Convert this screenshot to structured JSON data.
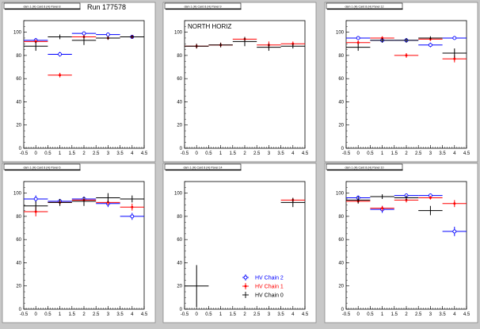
{
  "run_label": "Run 177578",
  "chart_data": [
    {
      "type": "scatter",
      "pad_title": "dam 1 (H) Card 8 (H) Panel 8",
      "annotation": "",
      "xlim": [
        -0.5,
        4.5
      ],
      "ylim": [
        0,
        110
      ],
      "x_ticks": [
        "-0.5",
        "0",
        "0.5",
        "1",
        "1.5",
        "2",
        "2.5",
        "3",
        "3.5",
        "4",
        "4.5"
      ],
      "y_ticks": [
        "0",
        "20",
        "40",
        "60",
        "80",
        "100"
      ],
      "series": [
        {
          "color": "#0000ff",
          "marker": "circle",
          "points": [
            [
              0,
              93,
              2
            ],
            [
              1,
              81,
              2
            ],
            [
              2,
              99,
              1.5
            ],
            [
              3,
              98,
              1.5
            ],
            [
              4,
              96,
              1.5
            ]
          ]
        },
        {
          "color": "#ff0000",
          "marker": "star",
          "points": [
            [
              0,
              92,
              1.5
            ],
            [
              1,
              63,
              2
            ],
            [
              2,
              96,
              1.5
            ],
            [
              3,
              95,
              1.5
            ],
            [
              4,
              96,
              1.5
            ]
          ]
        },
        {
          "color": "#000000",
          "marker": "plus",
          "points": [
            [
              0,
              88,
              4
            ],
            [
              1,
              96,
              2
            ],
            [
              2,
              93,
              4
            ],
            [
              3,
              95,
              1.5
            ],
            [
              4,
              96,
              1.5
            ]
          ]
        }
      ]
    },
    {
      "type": "scatter",
      "pad_title": "dam 1 (H) Card 8 (H) Panel 9",
      "annotation": "NORTH HORIZ",
      "xlim": [
        -0.5,
        4.5
      ],
      "ylim": [
        0,
        110
      ],
      "x_ticks": [
        "-0.5",
        "0",
        "0.5",
        "1",
        "1.5",
        "2",
        "2.5",
        "3",
        "3.5",
        "4",
        "4.5"
      ],
      "y_ticks": [
        "0",
        "20",
        "40",
        "60",
        "80",
        "100"
      ],
      "series": [
        {
          "color": "#ff0000",
          "marker": "star",
          "points": [
            [
              0,
              88,
              2
            ],
            [
              1,
              89,
              2
            ],
            [
              2,
              94,
              2
            ],
            [
              3,
              89,
              3
            ],
            [
              4,
              90,
              2
            ]
          ]
        },
        {
          "color": "#000000",
          "marker": "plus",
          "points": [
            [
              0,
              88,
              2
            ],
            [
              1,
              89,
              2
            ],
            [
              2,
              92,
              4
            ],
            [
              3,
              87,
              3
            ],
            [
              4,
              88,
              2
            ]
          ]
        }
      ]
    },
    {
      "type": "scatter",
      "pad_title": "dam 1 (H) Card 8 (H) Panel 12",
      "annotation": "",
      "xlim": [
        -0.5,
        4.5
      ],
      "ylim": [
        0,
        110
      ],
      "x_ticks": [
        "-0.5",
        "0",
        "0.5",
        "1",
        "1.5",
        "2",
        "2.5",
        "3",
        "3.5",
        "4",
        "4.5"
      ],
      "y_ticks": [
        "0",
        "20",
        "40",
        "60",
        "80",
        "100"
      ],
      "series": [
        {
          "color": "#0000ff",
          "marker": "circle",
          "points": [
            [
              0,
              95,
              1.5
            ],
            [
              1,
              93,
              2
            ],
            [
              2,
              93,
              2
            ],
            [
              3,
              89,
              2
            ],
            [
              4,
              95,
              1.5
            ]
          ]
        },
        {
          "color": "#ff0000",
          "marker": "star",
          "points": [
            [
              0,
              91,
              2
            ],
            [
              1,
              95,
              1.5
            ],
            [
              2,
              80,
              2
            ],
            [
              3,
              94,
              1.5
            ],
            [
              4,
              77,
              3
            ]
          ]
        },
        {
          "color": "#000000",
          "marker": "plus",
          "points": [
            [
              0,
              87,
              3
            ],
            [
              1,
              93,
              2
            ],
            [
              2,
              93,
              2
            ],
            [
              3,
              95,
              1.5
            ],
            [
              4,
              82,
              4
            ]
          ]
        }
      ]
    },
    {
      "type": "scatter",
      "pad_title": "dam 1 (H) Card 8 (H) Panel 6",
      "annotation": "",
      "xlim": [
        -0.5,
        4.5
      ],
      "ylim": [
        0,
        110
      ],
      "x_ticks": [
        "-0.5",
        "0",
        "0.5",
        "1",
        "1.5",
        "2",
        "2.5",
        "3",
        "3.5",
        "4",
        "4.5"
      ],
      "y_ticks": [
        "0",
        "20",
        "40",
        "60",
        "80",
        "100"
      ],
      "series": [
        {
          "color": "#0000ff",
          "marker": "circle",
          "points": [
            [
              0,
              95,
              3
            ],
            [
              1,
              93,
              2
            ],
            [
              2,
              95,
              2
            ],
            [
              3,
              91,
              3
            ],
            [
              4,
              80,
              3
            ]
          ]
        },
        {
          "color": "#ff0000",
          "marker": "star",
          "points": [
            [
              0,
              84,
              4
            ],
            [
              1,
              92,
              2
            ],
            [
              2,
              94,
              2
            ],
            [
              3,
              92,
              2
            ],
            [
              4,
              88,
              3
            ]
          ]
        },
        {
          "color": "#000000",
          "marker": "plus",
          "points": [
            [
              0,
              89,
              4
            ],
            [
              1,
              92,
              3
            ],
            [
              2,
              93,
              4
            ],
            [
              3,
              96,
              4
            ],
            [
              4,
              95,
              3
            ]
          ]
        }
      ]
    },
    {
      "type": "scatter",
      "pad_title": "dam 1 (H) Card 8 (H) Panel 14",
      "annotation": "",
      "xlim": [
        -0.5,
        4.5
      ],
      "ylim": [
        0,
        110
      ],
      "x_ticks": [
        "-0.5",
        "0",
        "0.5",
        "1",
        "1.5",
        "2",
        "2.5",
        "3",
        "3.5",
        "4",
        "4.5"
      ],
      "y_ticks": [
        "0",
        "20",
        "40",
        "60",
        "80",
        "100"
      ],
      "series": [
        {
          "color": "#ff0000",
          "marker": "star",
          "points": [
            [
              4,
              94,
              1.5
            ]
          ]
        },
        {
          "color": "#000000",
          "marker": "plus",
          "points": [
            [
              0,
              20,
              18
            ],
            [
              4,
              92,
              4
            ]
          ]
        }
      ],
      "legend": [
        {
          "label": "HV Chain 2",
          "color": "#0000ff",
          "marker": "circle"
        },
        {
          "label": "HV Chain 1",
          "color": "#ff0000",
          "marker": "star"
        },
        {
          "label": "HV Chain 0",
          "color": "#000000",
          "marker": "plus"
        }
      ]
    },
    {
      "type": "scatter",
      "pad_title": "dam 1 (H) Card 8 (H) Panel 10",
      "annotation": "",
      "xlim": [
        -0.5,
        4.5
      ],
      "ylim": [
        0,
        110
      ],
      "x_ticks": [
        "-0.5",
        "0",
        "0.5",
        "1",
        "1.5",
        "2",
        "2.5",
        "3",
        "3.5",
        "4",
        "4.5"
      ],
      "y_ticks": [
        "0",
        "20",
        "40",
        "60",
        "80",
        "100"
      ],
      "series": [
        {
          "color": "#0000ff",
          "marker": "circle",
          "points": [
            [
              0,
              96,
              2
            ],
            [
              1,
              86,
              3
            ],
            [
              2,
              98,
              1.5
            ],
            [
              3,
              98,
              1.5
            ],
            [
              4,
              67,
              4
            ]
          ]
        },
        {
          "color": "#ff0000",
          "marker": "star",
          "points": [
            [
              0,
              93,
              1.5
            ],
            [
              1,
              87,
              2
            ],
            [
              2,
              94,
              2
            ],
            [
              3,
              96,
              1.5
            ],
            [
              4,
              91,
              3
            ]
          ]
        },
        {
          "color": "#000000",
          "marker": "plus",
          "points": [
            [
              0,
              94,
              3
            ],
            [
              1,
              97,
              2
            ],
            [
              2,
              96,
              2
            ],
            [
              3,
              85,
              4
            ],
            [
              4,
              null,
              0
            ]
          ]
        }
      ]
    }
  ]
}
